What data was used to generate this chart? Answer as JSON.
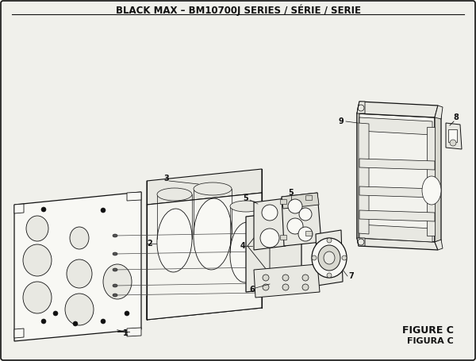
{
  "title": "BLACK MAX – BM10700J SERIES / SÉRIE / SERIE",
  "title_fontsize": 8.5,
  "bg_color": "#f0f0eb",
  "border_color": "#111111",
  "figure_c_text": "FIGURE C",
  "figura_c_text": "FIGURA C",
  "lc": "#111111",
  "fill_light": "#f8f8f4",
  "fill_mid": "#e8e8e2",
  "fill_dark": "#d8d8d0"
}
